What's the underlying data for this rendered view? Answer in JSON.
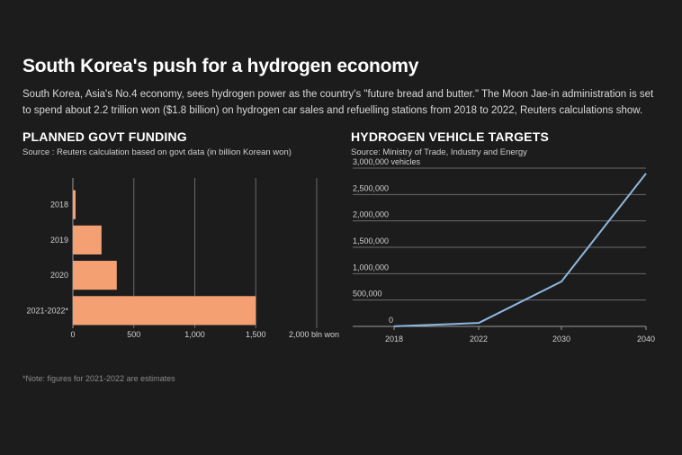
{
  "header": {
    "title": "South Korea's push for a hydrogen economy",
    "subtitle": "South Korea, Asia's No.4 economy, sees hydrogen power as the country's \"future bread and butter.\" The Moon Jae-in administration is set to spend about 2.2 trillion won ($1.8 billion) on hydrogen car sales and refuelling stations from 2018 to 2022, Reuters calculations show."
  },
  "left_panel": {
    "title": "PLANNED GOVT FUNDING",
    "source": "Source : Reuters calculation based on govt data (in billion Korean won)"
  },
  "right_panel": {
    "title": "HYDROGEN VEHICLE TARGETS",
    "source": "Source: Ministry of Trade, Industry and Energy"
  },
  "footer": {
    "note": "*Note: figures for 2021-2022 are estimates"
  },
  "colors": {
    "bar": "#f5a073",
    "line": "#8fb8e0",
    "grid": "#6a6a6a",
    "background": "#1c1c1c"
  },
  "chart_data": [
    {
      "type": "bar",
      "orientation": "horizontal",
      "title": "PLANNED GOVT FUNDING",
      "categories": [
        "2018",
        "2019",
        "2020",
        "2021-2022*"
      ],
      "values": [
        15,
        235,
        360,
        1500
      ],
      "xlim": [
        0,
        2000
      ],
      "xticks": [
        0,
        500,
        1000,
        1500,
        2000
      ],
      "xtick_labels": [
        "0",
        "500",
        "1,000",
        "1,500",
        "2,000 bln won"
      ],
      "grid": true
    },
    {
      "type": "line",
      "title": "HYDROGEN VEHICLE TARGETS",
      "x": [
        "2018",
        "2022",
        "2030",
        "2040"
      ],
      "values": [
        3000,
        65000,
        850000,
        2900000
      ],
      "ylim": [
        0,
        3000000
      ],
      "yticks": [
        0,
        500000,
        1000000,
        1500000,
        2000000,
        2500000,
        3000000
      ],
      "ytick_labels": [
        "0",
        "500,000",
        "1,000,000",
        "1,500,000",
        "2,000,000",
        "2,500,000",
        "3,000,000 vehicles"
      ],
      "grid": true
    }
  ]
}
